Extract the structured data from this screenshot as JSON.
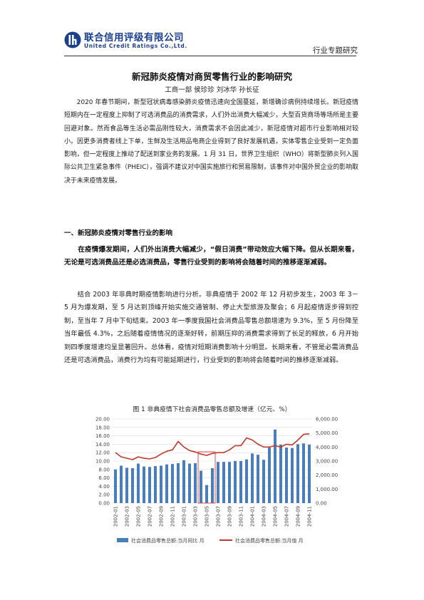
{
  "header": {
    "logo_cn": "联合信用评级有限公司",
    "logo_en": "United Credit Ratings Co.,Ltd.",
    "report_type": "行业专题研究"
  },
  "title": "新冠肺炎疫情对商贸零售行业的影响研究",
  "authors": "工商一部 侯珍珍 刘冰华 孙长征",
  "paragraphs": {
    "intro": "2020 年春节期间，新型冠状病毒感染肺炎疫情迅速向全国蔓延，新增确诊病例持续增长。新冠疫情短期内在一定程度上抑制了可选消费品的消费需求，人们外出消费大幅减少，大型百货商场等场所是主要回避对象。然而食品等生活必需品刚性较大，消费需求不会因此减少，新冠疫情对超市行业影响相对较小。因更多消费者线上下单，生鲜及生活用品电商企业得到了良好发展机遇，实体零售企业受到一定负面影响，但一定程度上推动了配送到家业务的发展。1 月 31 日，世界卫生组织（WHO）将新型肺炎列入国际公共卫生紧急事件（PHEIC），强调不建议对中国实施旅行和贸易限制，该事件对中国外贸企业的影响取决于未来疫情发展。",
    "section1": "一、新冠肺炎疫情对零售行业的影响",
    "summary": "在疫情爆发期间，人们外出消费大幅减少，“假日消费”带动效应大幅下降。但从长期来看，无论是可选消费品还是必选消费品，零售行业受到的影响将会随着时间的推移逐渐减弱。",
    "analysis": "结合 2003 年非典时期疫情影响进行分析。非典疫情于 2002 年 12 月初步发生，2003 年 3－5 月为爆发期，至 5 月达到顶峰开始实施交通管制、停止大型旅游及聚会；6 月起疫情逐步得到控制，至当年 7 月中下旬结束。2003 年一季度我国社会消费品零售总额增速为 9.3%，至 5 月份降至当年最低 4.3%，之后随着疫情情况的逐渐好转，前期压抑的消费需求得到了长足的释放，6 月开始到四季度增速均呈显著回升。总体看，疫情对短期消费影响十分明显。长期来看，不管是必需消费品还是可选消费品，消费行为均有可能延期进行，行业受到的影响将会随着时间的推移逐渐减弱。"
  },
  "figure": {
    "caption": "图 1 非典疫情下社会消费品零售总额及增速（亿元、%）"
  },
  "chart_data": {
    "type": "bar",
    "x": [
      "2002-01",
      "2002-02",
      "2002-03",
      "2002-04",
      "2002-05",
      "2002-06",
      "2002-07",
      "2002-08",
      "2002-09",
      "2002-10",
      "2002-11",
      "2002-12",
      "2003-01",
      "2003-02",
      "2003-03",
      "2003-04",
      "2003-05",
      "2003-06",
      "2003-07",
      "2003-08",
      "2003-09",
      "2003-10",
      "2003-11",
      "2003-12",
      "2004-01",
      "2004-02",
      "2004-03",
      "2004-04",
      "2004-05",
      "2004-06",
      "2004-07",
      "2004-08",
      "2004-09",
      "2004-10",
      "2004-11"
    ],
    "x_tick_labels": [
      "2002-01",
      "2002-03",
      "2002-05",
      "2002-07",
      "2002-09",
      "2002-11",
      "2003-01",
      "2003-03",
      "2003-05",
      "2003-07",
      "2003-09",
      "2003-11",
      "2004-01",
      "2004-03",
      "2004-05",
      "2004-07",
      "2004-09",
      "2004-11"
    ],
    "series": [
      {
        "name": "社会消费品零售总额:当月同比 月",
        "type": "bar",
        "axis": "left",
        "color": "#4a7ebb",
        "values": [
          8.0,
          8.9,
          8.4,
          8.3,
          9.4,
          8.7,
          8.6,
          8.8,
          8.9,
          9.2,
          9.3,
          9.5,
          10.2,
          9.4,
          9.5,
          7.7,
          4.3,
          8.3,
          9.8,
          9.8,
          9.8,
          10.0,
          10.0,
          10.4,
          11.8,
          11.5,
          10.3,
          13.2,
          17.5,
          13.9,
          13.2,
          13.1,
          14.0,
          14.2,
          13.9
        ]
      },
      {
        "name": "社会消费品零售总额:当月值 月",
        "type": "line",
        "axis": "right",
        "color": "#c0392b",
        "values": [
          3600,
          3300,
          3200,
          3100,
          3300,
          3200,
          3150,
          3250,
          3500,
          3700,
          3800,
          4400,
          4000,
          3750,
          3650,
          3500,
          3400,
          3550,
          3600,
          3600,
          3800,
          4100,
          4100,
          4650,
          4500,
          4200,
          4000,
          4000,
          4100,
          4000,
          4200,
          4150,
          4500,
          4900,
          4950
        ]
      }
    ],
    "ylim_left": [
      0,
      20
    ],
    "yticks_left": [
      "0.00",
      "2.00",
      "4.00",
      "6.00",
      "8.00",
      "10.00",
      "12.00",
      "14.00",
      "16.00",
      "18.00",
      "20.00"
    ],
    "ylim_right": [
      0,
      6000
    ],
    "yticks_right": [
      "0.00",
      "1,000.00",
      "2,000.00",
      "3,000.00",
      "4,000.00",
      "5,000.00",
      "6,000.00"
    ],
    "grid": true,
    "highlight_box": {
      "from": "2003-04",
      "to": "2003-06",
      "color": "#d93b3b"
    },
    "legend_position": "bottom"
  }
}
